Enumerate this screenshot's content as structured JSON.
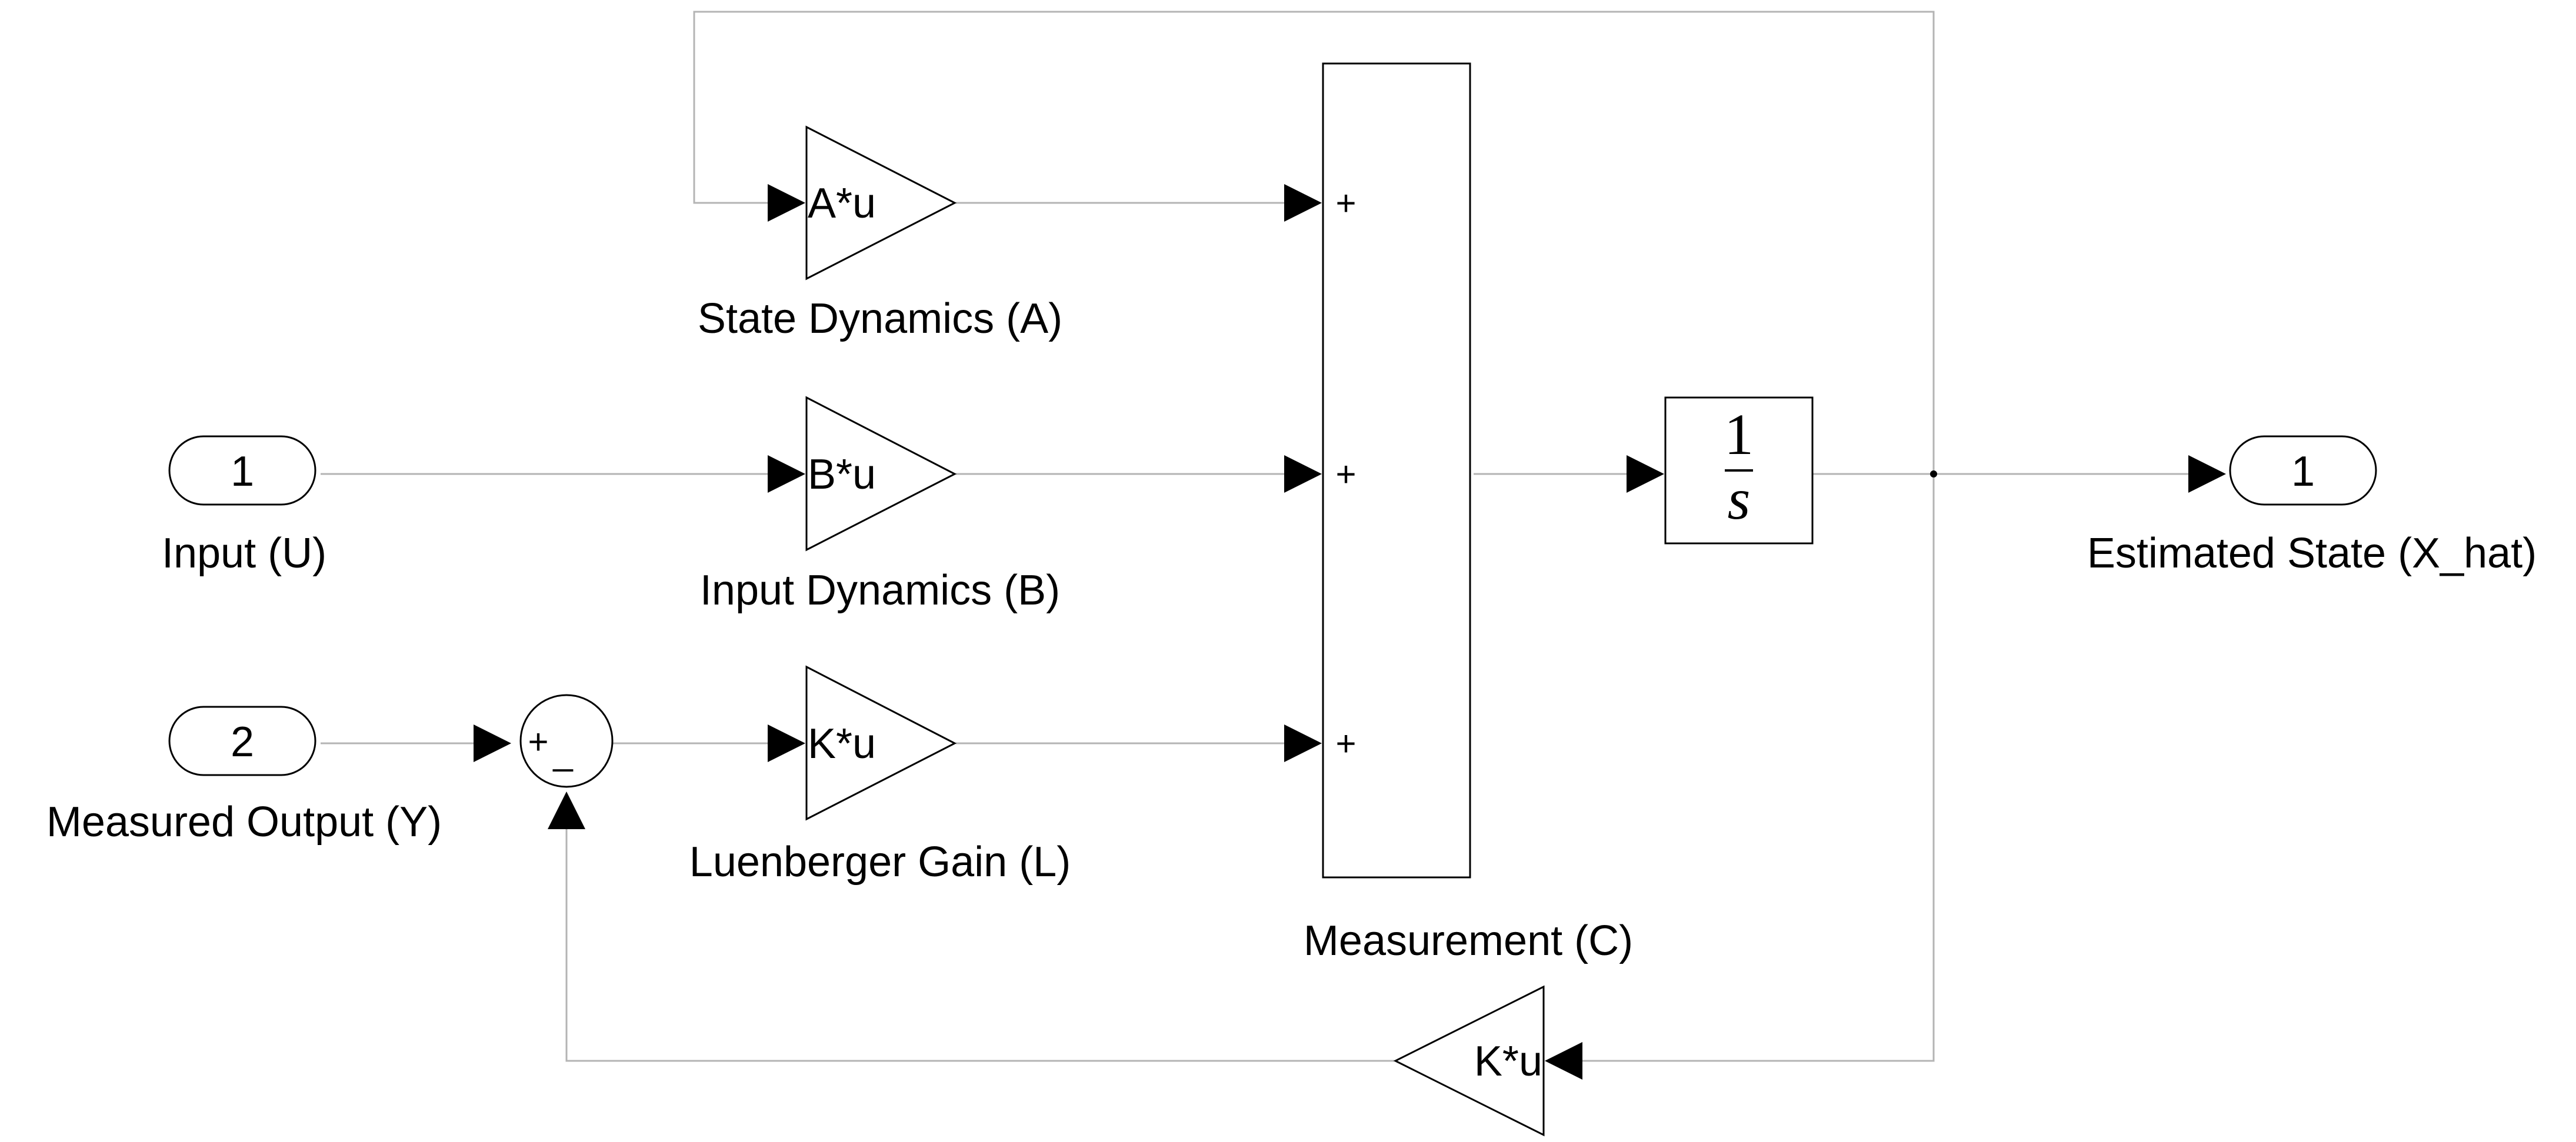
{
  "inports": [
    {
      "number": "1",
      "label": "Input (U)"
    },
    {
      "number": "2",
      "label": "Measured Output (Y)"
    }
  ],
  "outport": {
    "number": "1",
    "label": "Estimated State (X_hat)"
  },
  "gains": {
    "state_dynamics": {
      "text": "A*u",
      "label": "State Dynamics (A)"
    },
    "input_dynamics": {
      "text": "B*u",
      "label": "Input Dynamics (B)"
    },
    "luenberger": {
      "text": "K*u",
      "label": "Luenberger Gain (L)"
    },
    "feedback": {
      "text": "K*u"
    }
  },
  "sum_small": {
    "plus": "+",
    "minus": "_"
  },
  "sum_large": {
    "signs": [
      "+",
      "+",
      "+"
    ],
    "label": "Measurement (C)"
  },
  "integrator": {
    "numerator": "1",
    "denominator": "s"
  }
}
